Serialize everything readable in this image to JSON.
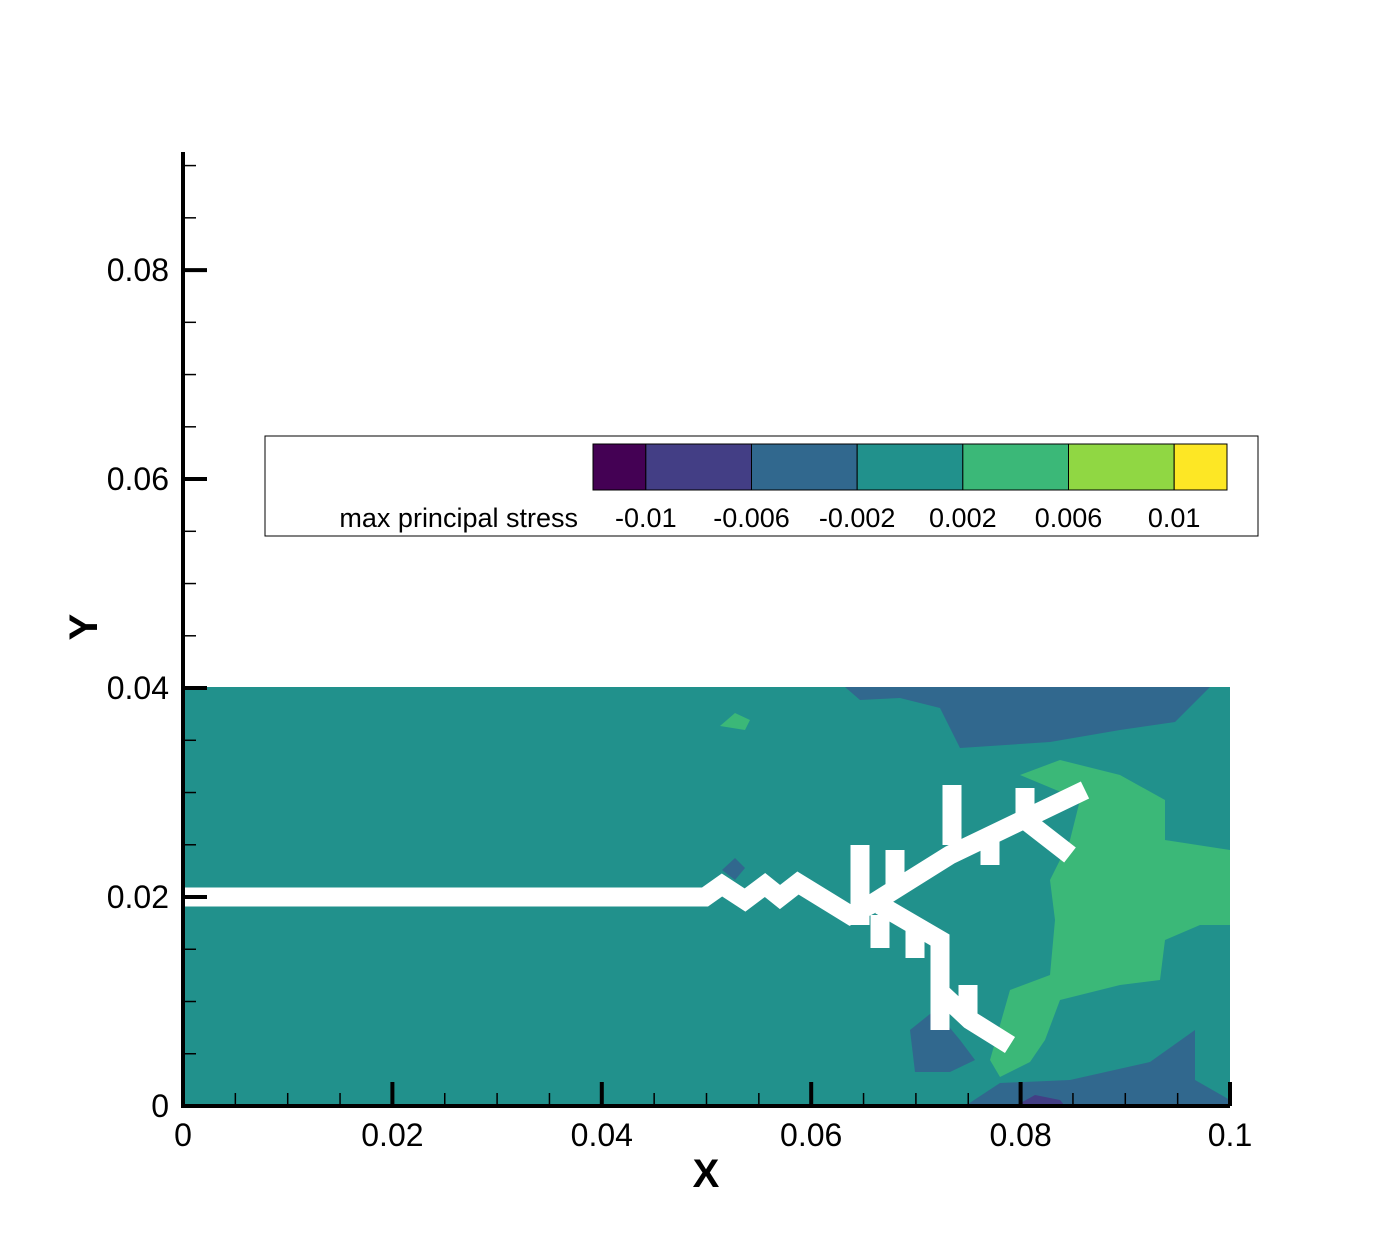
{
  "chart_data": {
    "type": "contour",
    "xlabel": "X",
    "ylabel": "Y",
    "xlim": [
      0,
      0.1
    ],
    "ylim": [
      0,
      0.0913
    ],
    "xticks": [
      0,
      0.02,
      0.04,
      0.06,
      0.08,
      0.1
    ],
    "yticks": [
      0,
      0.02,
      0.04,
      0.06,
      0.08
    ],
    "xminorticks": [
      0.005,
      0.01,
      0.015,
      0.025,
      0.03,
      0.035,
      0.045,
      0.05,
      0.055,
      0.065,
      0.07,
      0.075,
      0.085,
      0.09,
      0.095
    ],
    "yminorticks": [
      0.005,
      0.01,
      0.015,
      0.025,
      0.03,
      0.035,
      0.045,
      0.05,
      0.055,
      0.065,
      0.07,
      0.075,
      0.085,
      0.09
    ],
    "colorbar": {
      "title": "max principal stress",
      "levels": [
        -0.01,
        -0.006,
        -0.002,
        0.002,
        0.006,
        0.01
      ],
      "clim": [
        -0.012,
        0.012
      ],
      "colors": [
        "#440154",
        "#433e85",
        "#31688e",
        "#21918c",
        "#3bb878",
        "#90d743",
        "#fde725"
      ]
    }
  }
}
